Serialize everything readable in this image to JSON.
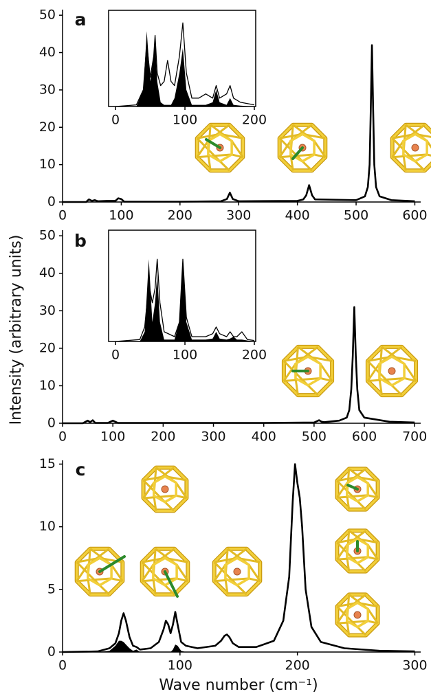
{
  "chart_data": [
    {
      "type": "line",
      "label": "a",
      "x": [
        0,
        40,
        45,
        50,
        55,
        60,
        75,
        90,
        95,
        100,
        105,
        150,
        200,
        270,
        280,
        285,
        290,
        300,
        400,
        410,
        415,
        420,
        425,
        430,
        500,
        515,
        520,
        523,
        525,
        527,
        529,
        531,
        534,
        540,
        560,
        600
      ],
      "series": [
        {
          "color": "#000000",
          "values": [
            0,
            0,
            0.7,
            0.3,
            0.5,
            0.2,
            0.3,
            0.3,
            1.0,
            0.8,
            0.1,
            0.1,
            0.1,
            0.2,
            0.8,
            2.5,
            0.8,
            0.2,
            0.3,
            0.7,
            1.8,
            4.5,
            1.8,
            0.7,
            0.5,
            1.5,
            4,
            10,
            25,
            42,
            25,
            10,
            4,
            1.5,
            0.5,
            0.2
          ]
        }
      ],
      "xlim": [
        0,
        610
      ],
      "xticks": [
        0,
        100,
        200,
        300,
        400,
        500,
        600
      ],
      "ylim": [
        0,
        51.5
      ],
      "yticks": [
        0,
        10,
        20,
        30,
        40,
        50
      ]
    },
    {
      "type": "line",
      "label": "b",
      "ylabel": "Intensity (arbitrary units)",
      "x": [
        0,
        40,
        50,
        55,
        60,
        65,
        90,
        100,
        110,
        200,
        400,
        500,
        505,
        510,
        515,
        520,
        550,
        565,
        570,
        574,
        577,
        580,
        583,
        586,
        590,
        600,
        650,
        700
      ],
      "series": [
        {
          "color": "#000000",
          "values": [
            0,
            0,
            0.7,
            0.3,
            0.8,
            0.1,
            0.1,
            0.7,
            0.1,
            0.1,
            0.1,
            0.2,
            0.5,
            0.8,
            0.4,
            0.3,
            0.7,
            1.5,
            3.5,
            9,
            18,
            31,
            18,
            9,
            3.5,
            1.5,
            0.4,
            0.2
          ]
        }
      ],
      "xlim": [
        0,
        712
      ],
      "xticks": [
        0,
        100,
        200,
        300,
        400,
        500,
        600,
        700
      ],
      "ylim": [
        0,
        51.5
      ],
      "yticks": [
        0,
        10,
        20,
        30,
        40,
        50
      ]
    },
    {
      "type": "line",
      "label": "c",
      "xlabel": "Wave number (cm⁻¹)",
      "x": [
        0,
        30,
        40,
        45,
        48,
        50,
        52,
        54,
        57,
        60,
        63,
        66,
        75,
        82,
        86,
        88,
        90,
        92,
        94,
        96,
        98,
        101,
        105,
        115,
        130,
        135,
        138,
        140,
        142,
        145,
        150,
        165,
        180,
        188,
        193,
        196,
        198,
        200,
        202,
        204,
        207,
        212,
        220,
        240,
        270,
        300
      ],
      "series": [
        {
          "color": "#000000",
          "values": [
            0,
            0.05,
            0.3,
            0.7,
            1.5,
            2.5,
            3.1,
            2.5,
            1.2,
            0.5,
            0.4,
            0.2,
            0.3,
            0.8,
            1.8,
            2.5,
            2.2,
            1.5,
            2.2,
            3.2,
            2.2,
            0.8,
            0.5,
            0.3,
            0.5,
            0.9,
            1.3,
            1.4,
            1.2,
            0.7,
            0.4,
            0.4,
            0.9,
            2.5,
            6,
            12,
            15,
            13.5,
            12.3,
            10,
            5,
            2,
            0.8,
            0.3,
            0.1,
            0.05
          ]
        },
        {
          "color": "#000000",
          "fill": true,
          "values": [
            0,
            0,
            0.1,
            0.5,
            0.9,
            0.9,
            0.8,
            0.6,
            0.3,
            0.1,
            0.2,
            0,
            0,
            0,
            0,
            0,
            0,
            0,
            0.2,
            0.6,
            0.5,
            0.1,
            0,
            0,
            0,
            0,
            0,
            0,
            0,
            0,
            0,
            0,
            0,
            0,
            0,
            0,
            0,
            0,
            0,
            0,
            0,
            0,
            0,
            0,
            0,
            0
          ]
        }
      ],
      "xlim": [
        0,
        305
      ],
      "xticks": [
        0,
        100,
        200,
        300
      ],
      "ylim": [
        0,
        15.3
      ],
      "yticks": [
        0,
        5,
        10,
        15
      ]
    },
    {
      "type": "line",
      "x": [
        0,
        30,
        40,
        45,
        50,
        55,
        57,
        60,
        65,
        70,
        75,
        80,
        85,
        92,
        97,
        102,
        110,
        120,
        130,
        140,
        145,
        150,
        160,
        165,
        170,
        180,
        200
      ],
      "series": [
        {
          "color": "#000000",
          "fill": true,
          "values": [
            0,
            0,
            0.2,
            0.9,
            0.3,
            0.6,
            0.8,
            0.3,
            0.05,
            0.02,
            0.02,
            0.02,
            0.1,
            0.4,
            0.7,
            0.2,
            0.02,
            0.02,
            0.02,
            0.05,
            0.2,
            0.05,
            0.02,
            0.1,
            0.02,
            0.01,
            0
          ]
        },
        {
          "color": "#000000",
          "values": [
            0,
            0.02,
            0.2,
            0.75,
            0.35,
            0.6,
            0.85,
            0.4,
            0.25,
            0.3,
            0.55,
            0.3,
            0.25,
            0.6,
            1.0,
            0.4,
            0.1,
            0.1,
            0.15,
            0.1,
            0.25,
            0.1,
            0.15,
            0.25,
            0.1,
            0.05,
            0.02
          ]
        }
      ],
      "xlim": [
        -10,
        202
      ],
      "xticks": [
        0,
        100,
        200
      ],
      "ylim": [
        0,
        1.15
      ]
    },
    {
      "type": "line",
      "x": [
        0,
        35,
        42,
        48,
        53,
        57,
        60,
        64,
        70,
        85,
        92,
        97,
        102,
        110,
        130,
        140,
        145,
        150,
        160,
        165,
        170,
        175,
        182,
        190,
        200
      ],
      "series": [
        {
          "color": "#000000",
          "fill": true,
          "values": [
            0,
            0,
            0.1,
            0.85,
            0.2,
            0.4,
            0.7,
            0.2,
            0.02,
            0.02,
            0.2,
            0.85,
            0.2,
            0.02,
            0.02,
            0.03,
            0.1,
            0.03,
            0.02,
            0.03,
            0.05,
            0.02,
            0.02,
            0.01,
            0
          ]
        },
        {
          "color": "#000000",
          "values": [
            0,
            0.02,
            0.15,
            0.6,
            0.4,
            0.55,
            0.85,
            0.4,
            0.1,
            0.05,
            0.2,
            0.85,
            0.25,
            0.05,
            0.05,
            0.08,
            0.15,
            0.08,
            0.05,
            0.1,
            0.05,
            0.05,
            0.1,
            0.02,
            0.01
          ]
        }
      ],
      "xlim": [
        -10,
        202
      ],
      "xticks": [
        0,
        100,
        200
      ],
      "ylim": [
        0,
        1.15
      ]
    }
  ]
}
